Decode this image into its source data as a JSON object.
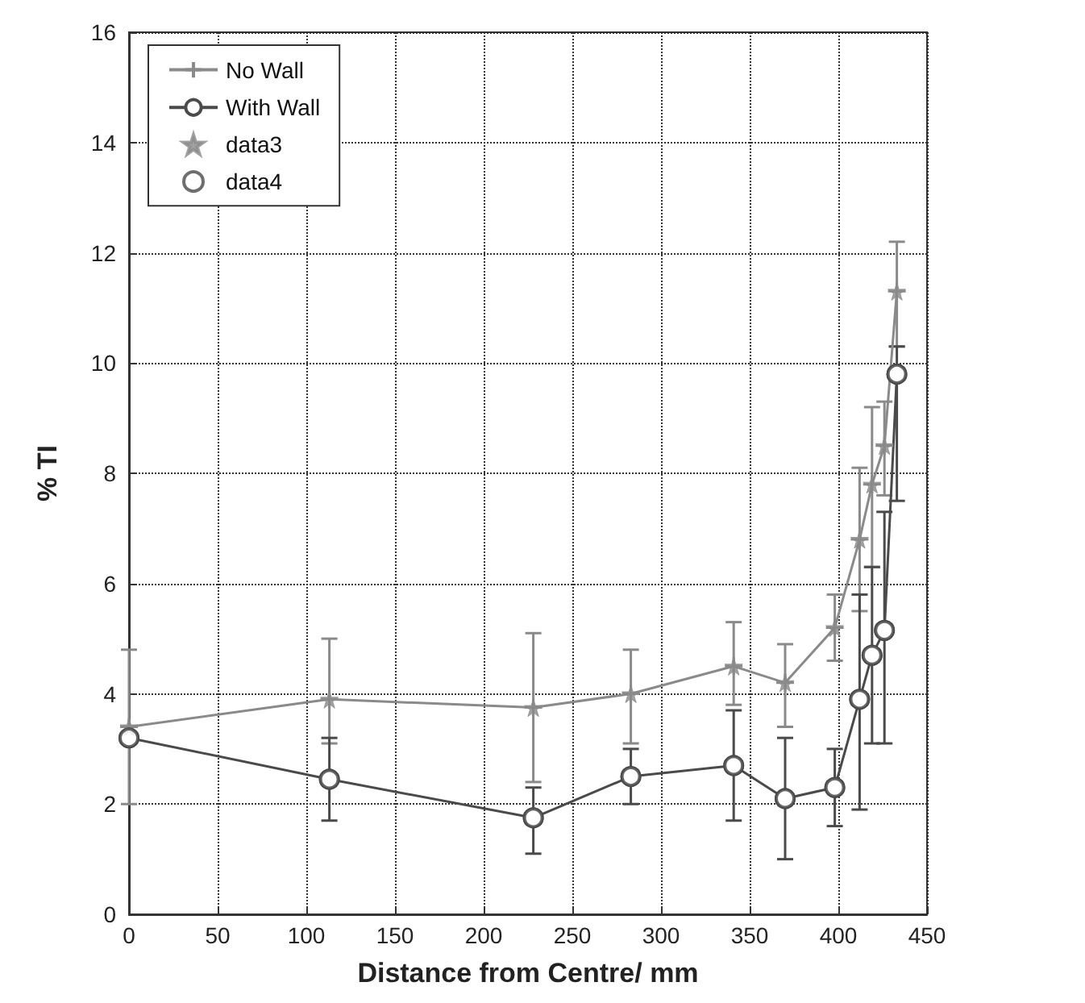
{
  "chart_data": {
    "type": "line",
    "xlabel": "Distance from Centre/ mm",
    "ylabel": "% TI",
    "x": [
      0,
      113,
      228,
      283,
      341,
      370,
      398,
      412,
      419,
      426,
      433
    ],
    "series": [
      {
        "name": "No Wall",
        "color": "#8a8a8a",
        "marker": "cross",
        "values": [
          3.4,
          3.9,
          3.75,
          4.0,
          4.5,
          4.2,
          5.2,
          6.8,
          7.8,
          8.5,
          11.3
        ],
        "errors": [
          [
            2.0,
            4.8
          ],
          [
            3.1,
            5.0
          ],
          [
            2.4,
            5.1
          ],
          [
            3.1,
            4.8
          ],
          [
            3.8,
            5.3
          ],
          [
            3.4,
            4.9
          ],
          [
            4.6,
            5.8
          ],
          [
            5.5,
            8.1
          ],
          [
            6.3,
            9.2
          ],
          [
            7.6,
            9.3
          ],
          [
            10.3,
            12.2
          ]
        ]
      },
      {
        "name": "With Wall",
        "color": "#4a4a4a",
        "marker": "circle",
        "values": [
          3.2,
          2.45,
          1.75,
          2.5,
          2.7,
          2.1,
          2.3,
          3.9,
          4.7,
          5.15,
          9.8
        ],
        "errors": [
          null,
          [
            1.7,
            3.2
          ],
          [
            1.1,
            2.3
          ],
          [
            2.0,
            3.0
          ],
          [
            1.7,
            3.7
          ],
          [
            1.0,
            3.2
          ],
          [
            1.6,
            3.0
          ],
          [
            1.9,
            5.8
          ],
          [
            3.1,
            6.3
          ],
          [
            3.1,
            7.3
          ],
          [
            7.5,
            10.3
          ]
        ]
      },
      {
        "name": "data3",
        "type": "scatter",
        "color": "#8a8a8a",
        "marker": "star",
        "values": [
          3.4,
          3.9,
          3.75,
          4.0,
          4.5,
          4.2,
          5.2,
          6.8,
          7.8,
          8.5,
          11.3
        ]
      },
      {
        "name": "data4",
        "type": "scatter",
        "color": "#4a4a4a",
        "marker": "circle",
        "values": [
          3.2,
          2.45,
          1.75,
          2.5,
          2.7,
          2.1,
          2.3,
          3.9,
          4.7,
          5.15,
          9.8
        ]
      }
    ],
    "xlim": [
      0,
      450
    ],
    "xticks": [
      0,
      50,
      100,
      150,
      200,
      250,
      300,
      350,
      400,
      450
    ],
    "ylim": [
      0,
      16
    ],
    "yticks": [
      0,
      2,
      4,
      6,
      8,
      10,
      12,
      14,
      16
    ],
    "grid": true,
    "legend": "top left"
  }
}
